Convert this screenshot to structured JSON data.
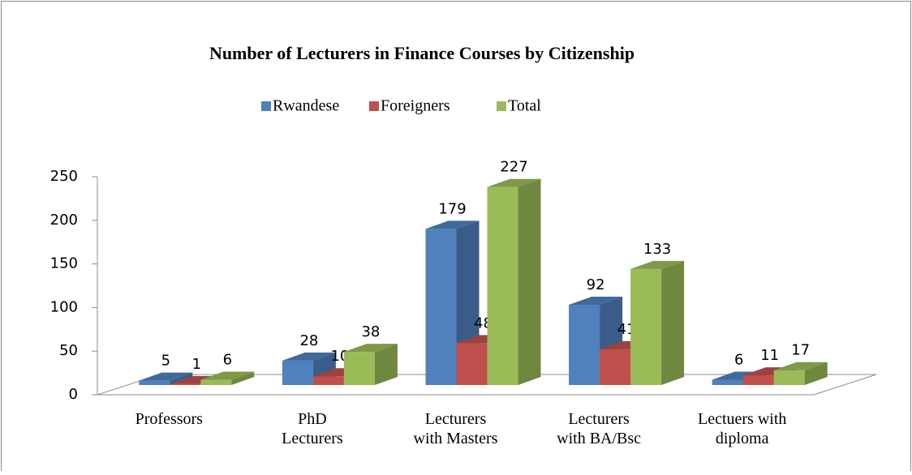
{
  "chart_data": {
    "type": "bar3d",
    "title": "Number of Lecturers in Finance Courses by Citizenship",
    "categories": [
      "Professors",
      "PhD\nLecturers",
      "Lecturers\nwith Masters",
      "Lecturers\nwith BA/Bsc",
      "Lectuers with\ndiploma"
    ],
    "series": [
      {
        "name": "Rwandese",
        "color": "#4f81bd",
        "values": [
          5,
          28,
          179,
          92,
          6
        ]
      },
      {
        "name": "Foreigners",
        "color": "#c0504d",
        "values": [
          1,
          10,
          48,
          41,
          11
        ]
      },
      {
        "name": "Total",
        "color": "#9bbb59",
        "values": [
          6,
          38,
          227,
          133,
          17
        ]
      }
    ],
    "ylim": [
      0,
      250
    ],
    "yticks": [
      0,
      50,
      100,
      150,
      200,
      250
    ],
    "legend": "top"
  }
}
